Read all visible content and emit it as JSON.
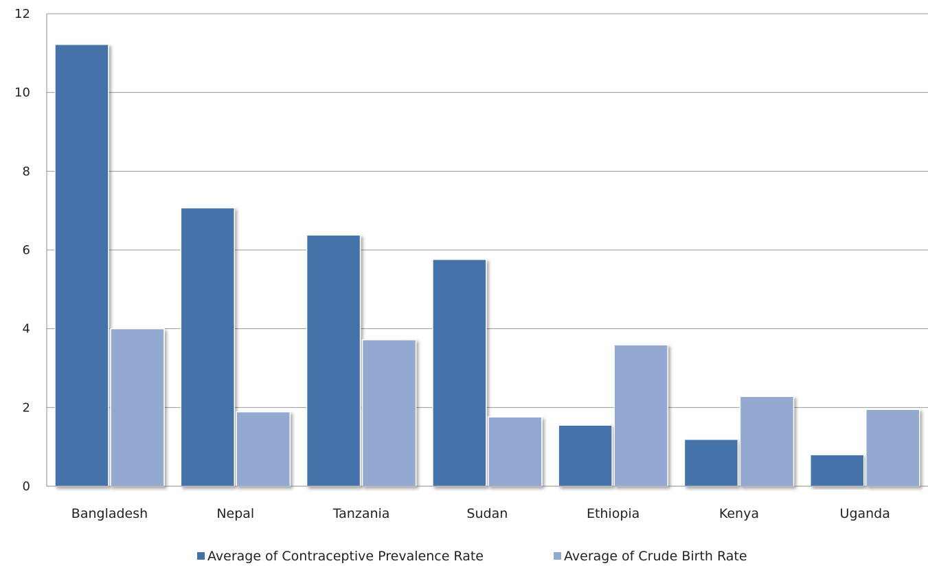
{
  "chart_data": {
    "type": "bar",
    "title": "",
    "xlabel": "",
    "ylabel": "",
    "categories": [
      "Bangladesh",
      "Nepal",
      "Tanzania",
      "Sudan",
      "Ethiopia",
      "Kenya",
      "Uganda"
    ],
    "series": [
      {
        "name": "Average of Contraceptive Prevalence Rate",
        "color": "#4472a8",
        "values": [
          11.22,
          7.07,
          6.38,
          5.76,
          1.55,
          1.19,
          0.8
        ]
      },
      {
        "name": "Average of Crude Birth Rate",
        "color": "#93a9d1",
        "values": [
          4.0,
          1.89,
          3.72,
          1.76,
          3.59,
          2.28,
          1.95
        ]
      }
    ],
    "ylim": [
      0,
      12
    ],
    "yticks": [
      "0",
      "2",
      "4",
      "6",
      "8",
      "10",
      "12"
    ],
    "grid": true,
    "legend_position": "bottom"
  }
}
